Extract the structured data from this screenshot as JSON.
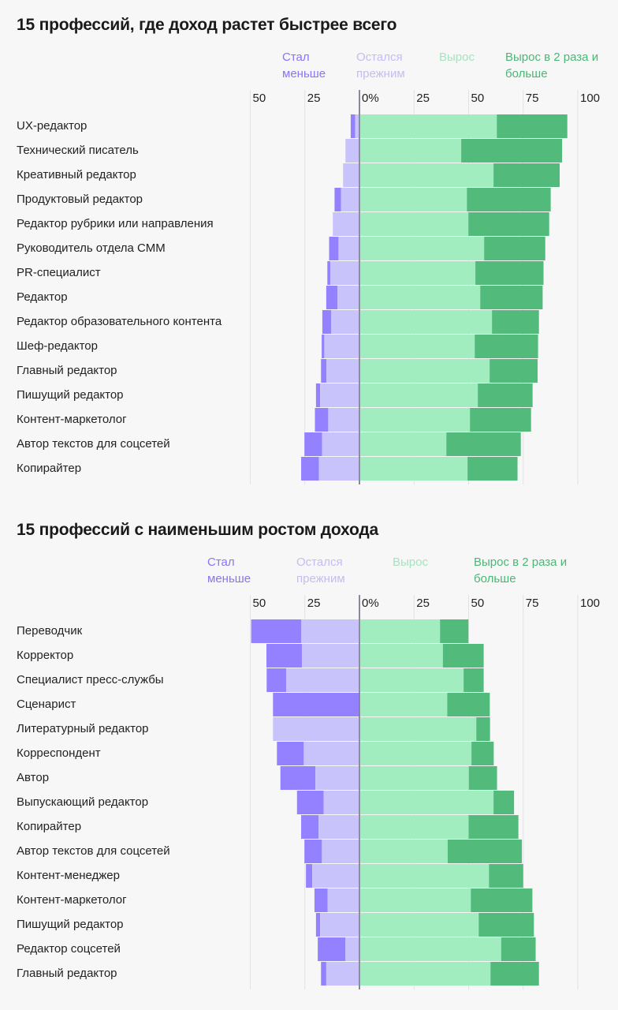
{
  "colors": {
    "decreased": "#9381ff",
    "unchanged": "#c9c3fc",
    "grew": "#a2edc0",
    "doubled": "#52bb7c"
  },
  "legend": {
    "decreased": "Стал меньше",
    "unchanged": "Остался прежним",
    "grew": "Вырос",
    "doubled": "Вырос в 2 раза и больше"
  },
  "chart_data": [
    {
      "type": "bar",
      "orientation": "horizontal-diverging-stacked",
      "title": "15 профессий, где доход растет быстрее всего",
      "xlim": [
        -50,
        100
      ],
      "x_ticks": [
        "50",
        "25",
        "0%",
        "25",
        "50",
        "75",
        "100"
      ],
      "grid": true,
      "legend_position": "top",
      "categories": [
        "UX-редактор",
        "Технический писатель",
        "Креативный редактор",
        "Продуктовый редактор",
        "Редактор рубрики или направления",
        "Руководитель отдела СММ",
        "PR-специалист",
        "Редактор",
        "Редактор образовательного контента",
        "Шеф-редактор",
        "Главный редактор",
        "Пишущий редактор",
        "Контент-маркетолог",
        "Автор текстов для соцсетей",
        "Копирайтер"
      ],
      "series": [
        {
          "name": "Стал меньше",
          "values": [
            2.0,
            0,
            0,
            3.0,
            0,
            4.3,
            1.4,
            5.1,
            4.1,
            1.2,
            2.5,
            1.9,
            6.1,
            8.1,
            8.1
          ]
        },
        {
          "name": "Остался прежним",
          "values": [
            2.0,
            6.4,
            7.5,
            8.4,
            12.2,
            9.6,
            13.3,
            10.1,
            12.9,
            16.1,
            15.1,
            18.0,
            14.3,
            17.1,
            18.6
          ]
        },
        {
          "name": "Вырос",
          "values": [
            62.9,
            46.6,
            61.4,
            49.2,
            49.9,
            57.1,
            53.1,
            55.3,
            60.7,
            52.8,
            59.6,
            54.2,
            50.6,
            39.8,
            49.5
          ]
        },
        {
          "name": "Вырос в 2 раза и больше",
          "values": [
            32.3,
            46.2,
            30.3,
            38.4,
            37.0,
            28.0,
            31.2,
            28.6,
            21.5,
            29.0,
            22.0,
            25.1,
            28.0,
            34.1,
            22.9
          ]
        }
      ]
    },
    {
      "type": "bar",
      "orientation": "horizontal-diverging-stacked",
      "title": "15 профессий с наименьшим ростом дохода",
      "xlim": [
        -50,
        100
      ],
      "x_ticks": [
        "50",
        "25",
        "0%",
        "25",
        "50",
        "75",
        "100"
      ],
      "grid": true,
      "legend_position": "top",
      "categories": [
        "Переводчик",
        "Корректор",
        "Специалист пресс-службы",
        "Сценарист",
        "Литературный редактор",
        "Корреспондент",
        "Автор",
        "Выпускающий редактор",
        "Копирайтер",
        "Автор текстов для соцсетей",
        "Контент-менеджер",
        "Контент-маркетолог",
        "Пишущий редактор",
        "Редактор соцсетей",
        "Главный редактор"
      ],
      "series": [
        {
          "name": "Стал меньше",
          "values": [
            23.0,
            16.3,
            9.0,
            39.6,
            0,
            12.3,
            16.0,
            12.2,
            8.0,
            8.0,
            2.9,
            6.0,
            1.9,
            12.7,
            2.4
          ]
        },
        {
          "name": "Остался прежним",
          "values": [
            26.6,
            26.3,
            33.5,
            0,
            39.6,
            25.5,
            20.2,
            16.4,
            18.7,
            17.2,
            21.6,
            14.6,
            18.0,
            6.4,
            15.2
          ]
        },
        {
          "name": "Вырос",
          "values": [
            36.9,
            38.2,
            47.7,
            40.2,
            53.5,
            51.3,
            50.1,
            61.4,
            50.0,
            40.4,
            59.3,
            51.0,
            54.6,
            64.9,
            60.0
          ]
        },
        {
          "name": "Вырос в 2 раза и больше",
          "values": [
            13.0,
            18.7,
            9.2,
            19.5,
            6.3,
            10.2,
            12.9,
            9.4,
            22.8,
            34.0,
            15.7,
            28.2,
            25.3,
            15.8,
            22.2
          ]
        }
      ]
    }
  ]
}
